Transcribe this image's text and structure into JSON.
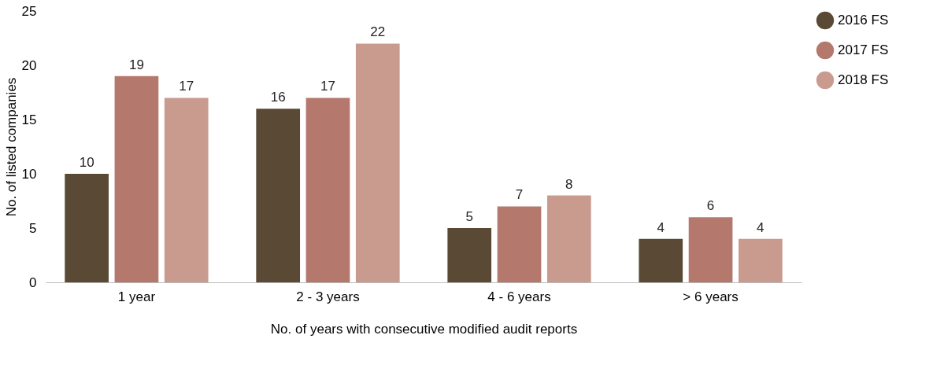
{
  "chart_data": {
    "type": "bar",
    "xlabel": "No. of years with consecutive modified audit reports",
    "ylabel": "No. of listed companies",
    "categories": [
      "1 year",
      "2 - 3 years",
      "4 - 6 years",
      "> 6 years"
    ],
    "series": [
      {
        "name": "2016 FS",
        "color": "#5a4a35",
        "values": [
          10,
          16,
          5,
          4
        ]
      },
      {
        "name": "2017 FS",
        "color": "#b5786d",
        "values": [
          19,
          17,
          7,
          6
        ]
      },
      {
        "name": "2018 FS",
        "color": "#c99b8f",
        "values": [
          17,
          22,
          8,
          4
        ]
      }
    ],
    "ylim": [
      0,
      25
    ],
    "yticks": [
      0,
      5,
      10,
      15,
      20,
      25
    ],
    "grid": false,
    "legend": "right",
    "data_labels": true
  }
}
